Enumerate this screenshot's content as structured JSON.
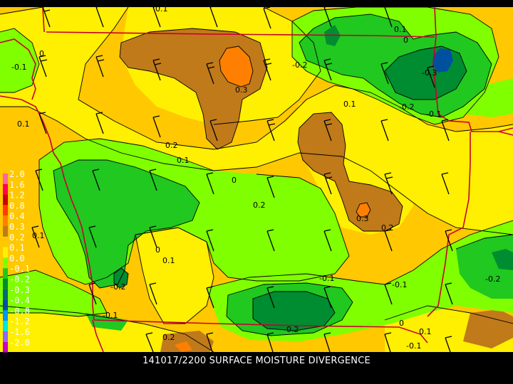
{
  "caption": "141017/2200 SURFACE MOISTURE DIVERGENCE",
  "colors": {
    "background": "#000000",
    "level_pos_03": "#ff8000",
    "level_pos_02": "#c07a1a",
    "level_pos_01": "#ffc800",
    "level_0": "#ffef00",
    "level_neg_01": "#80ff00",
    "level_neg_02": "#20c820",
    "level_neg_03": "#008c30",
    "level_neg_04": "#0050a0",
    "boundary": "#c80030",
    "contour": "#000000"
  },
  "legend": [
    {
      "label": "2.0",
      "color": "#ff64a0"
    },
    {
      "label": "1.6",
      "color": "#ff0050"
    },
    {
      "label": "1.2",
      "color": "#c80000"
    },
    {
      "label": "0.8",
      "color": "#ff3c00"
    },
    {
      "label": "0.4",
      "color": "#ff8000"
    },
    {
      "label": "0.3",
      "color": "#c07a1a"
    },
    {
      "label": "0.2",
      "color": "#ffc800"
    },
    {
      "label": "0.1",
      "color": "#ffef00"
    },
    {
      "label": "0.0",
      "color": "#80ff00"
    },
    {
      "label": "-0.1",
      "color": "#20c820"
    },
    {
      "label": "-0.2",
      "color": "#008c30"
    },
    {
      "label": "-0.3",
      "color": "#006e6e"
    },
    {
      "label": "-0.4",
      "color": "#0050a0"
    },
    {
      "label": "-0.8",
      "color": "#0096ff"
    },
    {
      "label": "-1.2",
      "color": "#00e6e6"
    },
    {
      "label": "-1.6",
      "color": "#9664ff"
    },
    {
      "label": "-2.0",
      "color": "#c800c8"
    }
  ],
  "contour_labels": [
    {
      "text": "0.1"
    },
    {
      "text": "0.1"
    },
    {
      "text": "0"
    },
    {
      "text": "-0.1"
    },
    {
      "text": "-0.2"
    },
    {
      "text": "-0.3"
    },
    {
      "text": "0.1"
    },
    {
      "text": "0"
    },
    {
      "text": "-0.2"
    },
    {
      "text": "-0.1"
    },
    {
      "text": "0.1"
    },
    {
      "text": "0.3"
    },
    {
      "text": "0.2"
    },
    {
      "text": "0.1"
    },
    {
      "text": "0"
    },
    {
      "text": "0.3"
    },
    {
      "text": "0.2"
    },
    {
      "text": "0.1"
    },
    {
      "text": "0"
    },
    {
      "text": "0.1"
    },
    {
      "text": "-0.2"
    },
    {
      "text": "-0.1"
    },
    {
      "text": "-0.1"
    },
    {
      "text": "-0.1"
    },
    {
      "text": "-0.2"
    },
    {
      "text": "0"
    },
    {
      "text": "-0.2"
    },
    {
      "text": "0.1"
    },
    {
      "text": "0.2"
    },
    {
      "text": "-0.1"
    },
    {
      "text": "0.2"
    }
  ]
}
